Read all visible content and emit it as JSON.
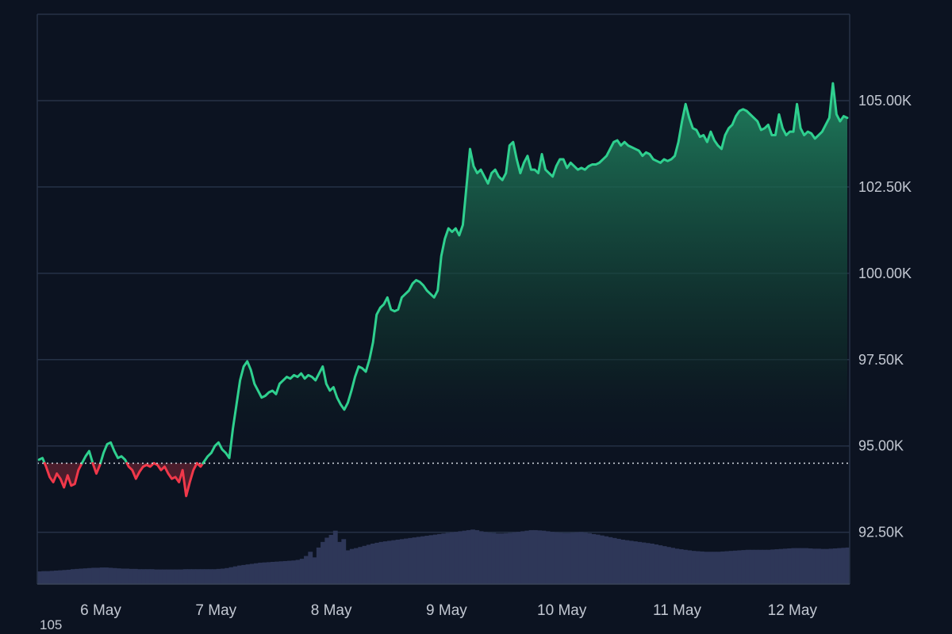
{
  "chart_data": {
    "type": "line",
    "title": "",
    "xlabel": "",
    "ylabel": "",
    "x_ticks": [
      "6 May",
      "7 May",
      "8 May",
      "9 May",
      "10 May",
      "11 May",
      "12 May"
    ],
    "y_ticks": [
      "92.50K",
      "95.00K",
      "97.50K",
      "100.00K",
      "102.50K",
      "105.00K"
    ],
    "y_tick_values": [
      92500,
      95000,
      97500,
      100000,
      102500,
      105000
    ],
    "ylim": [
      91000,
      107500
    ],
    "baseline": 94500,
    "grid": true,
    "colors": {
      "up": "#2fd08f",
      "down": "#f0384a",
      "volume": "#2e3758",
      "grid": "#263247",
      "background": "#0c1321"
    },
    "series": [
      {
        "values": [
          94600,
          94650,
          94400,
          94100,
          93950,
          94200,
          94050,
          93800,
          94150,
          93850,
          93900,
          94300,
          94500,
          94700,
          94850,
          94500,
          94200,
          94450,
          94800,
          95050,
          95100,
          94850,
          94650,
          94700,
          94600,
          94400,
          94300,
          94050,
          94250,
          94400,
          94450,
          94400,
          94500,
          94450,
          94300,
          94400,
          94200,
          94050,
          94100,
          93950,
          94300,
          93550,
          93950,
          94300,
          94500,
          94400,
          94550,
          94700,
          94800,
          95000,
          95100,
          94900,
          94800,
          94650,
          95500,
          96200,
          96900,
          97300,
          97450,
          97200,
          96800,
          96600,
          96400,
          96450,
          96550,
          96600,
          96500,
          96800,
          96900,
          97000,
          96950,
          97050,
          97000,
          97100,
          96950,
          97050,
          97000,
          96900,
          97100,
          97300,
          96800,
          96600,
          96700,
          96400,
          96200,
          96050,
          96250,
          96600,
          97000,
          97300,
          97250,
          97150,
          97500,
          98000,
          98800,
          99000,
          99100,
          99300,
          98950,
          98900,
          98950,
          99300,
          99400,
          99500,
          99700,
          99800,
          99750,
          99650,
          99500,
          99400,
          99300,
          99500,
          100500,
          101000,
          101300,
          101200,
          101300,
          101100,
          101400,
          102500,
          103600,
          103100,
          102900,
          103000,
          102800,
          102600,
          102900,
          103000,
          102800,
          102700,
          102900,
          103700,
          103800,
          103300,
          102900,
          103200,
          103400,
          103000,
          103000,
          102900,
          103450,
          103000,
          102900,
          102800,
          103100,
          103300,
          103300,
          103050,
          103200,
          103100,
          103000,
          103050,
          103000,
          103100,
          103150,
          103150,
          103200,
          103300,
          103400,
          103600,
          103800,
          103850,
          103700,
          103800,
          103700,
          103650,
          103600,
          103550,
          103400,
          103500,
          103450,
          103300,
          103250,
          103200,
          103300,
          103250,
          103300,
          103400,
          103800,
          104400,
          104900,
          104500,
          104200,
          104150,
          103950,
          104000,
          103800,
          104100,
          103850,
          103700,
          103600,
          104000,
          104200,
          104300,
          104550,
          104700,
          104750,
          104700,
          104600,
          104500,
          104400,
          104150,
          104200,
          104300,
          104000,
          104000,
          104600,
          104200,
          104000,
          104100,
          104100,
          104900,
          104200,
          104000,
          104100,
          104050,
          103900,
          104000,
          104100,
          104300,
          104500,
          105500,
          104600,
          104400,
          104550,
          104500
        ]
      }
    ],
    "volume": [
      45,
      46,
      46,
      47,
      48,
      49,
      50,
      51,
      53,
      54,
      55,
      56,
      57,
      58,
      58,
      59,
      59,
      58,
      57,
      56,
      55,
      55,
      54,
      54,
      53,
      53,
      53,
      53,
      52,
      52,
      52,
      52,
      52,
      52,
      52,
      53,
      53,
      53,
      53,
      53,
      53,
      53,
      53,
      54,
      55,
      57,
      60,
      63,
      66,
      68,
      70,
      72,
      74,
      76,
      77,
      78,
      79,
      80,
      81,
      82,
      83,
      84,
      86,
      90,
      100,
      115,
      95,
      130,
      150,
      165,
      175,
      190,
      150,
      160,
      120,
      125,
      128,
      132,
      136,
      140,
      144,
      147,
      150,
      152,
      154,
      156,
      158,
      160,
      162,
      164,
      166,
      168,
      170,
      172,
      174,
      176,
      178,
      180,
      182,
      184,
      186,
      188,
      190,
      192,
      194,
      192,
      188,
      185,
      183,
      182,
      180,
      180,
      181,
      182,
      184,
      186,
      188,
      190,
      192,
      192,
      191,
      190,
      188,
      186,
      184,
      183,
      182,
      182,
      183,
      184,
      185,
      183,
      181,
      178,
      176,
      173,
      170,
      167,
      164,
      161,
      158,
      156,
      154,
      152,
      150,
      148,
      146,
      144,
      141,
      138,
      135,
      132,
      129,
      126,
      124,
      122,
      120,
      118,
      117,
      116,
      115,
      115,
      115,
      115,
      116,
      117,
      118,
      119,
      120,
      121,
      122,
      122,
      122,
      122,
      122,
      122,
      123,
      124,
      125,
      126,
      127,
      128,
      128,
      128,
      128,
      127,
      126,
      126,
      125,
      125,
      126,
      127,
      128,
      129,
      130
    ]
  },
  "corner_label": "105"
}
